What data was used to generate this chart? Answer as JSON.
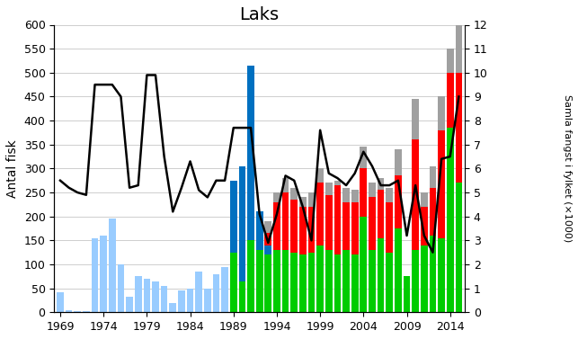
{
  "title": "Laks",
  "ylabel_left": "Antal fisk",
  "ylabel_right": "Samla fangst i fylket (×1000)",
  "ylim_left": [
    0,
    600
  ],
  "ylim_right": [
    0,
    12
  ],
  "yticks_left": [
    0,
    50,
    100,
    150,
    200,
    250,
    300,
    350,
    400,
    450,
    500,
    550,
    600
  ],
  "yticks_right": [
    0,
    1,
    2,
    3,
    4,
    5,
    6,
    7,
    8,
    9,
    10,
    11,
    12
  ],
  "years": [
    1969,
    1970,
    1971,
    1972,
    1973,
    1974,
    1975,
    1976,
    1977,
    1978,
    1979,
    1980,
    1981,
    1982,
    1983,
    1984,
    1985,
    1986,
    1987,
    1988,
    1989,
    1990,
    1991,
    1992,
    1993,
    1994,
    1995,
    1996,
    1997,
    1998,
    1999,
    2000,
    2001,
    2002,
    2003,
    2004,
    2005,
    2006,
    2007,
    2008,
    2009,
    2010,
    2011,
    2012,
    2013,
    2014,
    2015
  ],
  "green": [
    0,
    0,
    0,
    0,
    0,
    0,
    0,
    0,
    0,
    0,
    0,
    0,
    0,
    0,
    0,
    0,
    0,
    0,
    0,
    0,
    125,
    65,
    150,
    130,
    120,
    130,
    130,
    125,
    120,
    125,
    140,
    130,
    120,
    130,
    120,
    200,
    130,
    155,
    125,
    175,
    75,
    130,
    140,
    160,
    155,
    385,
    270
  ],
  "blue": [
    0,
    0,
    0,
    0,
    0,
    0,
    0,
    0,
    0,
    0,
    0,
    0,
    0,
    0,
    0,
    0,
    0,
    0,
    0,
    0,
    150,
    240,
    365,
    80,
    20,
    0,
    0,
    0,
    0,
    0,
    0,
    0,
    0,
    0,
    0,
    0,
    0,
    0,
    0,
    0,
    0,
    0,
    0,
    0,
    0,
    0,
    0
  ],
  "red": [
    0,
    0,
    0,
    0,
    0,
    0,
    0,
    0,
    0,
    0,
    0,
    0,
    0,
    0,
    0,
    0,
    0,
    0,
    0,
    0,
    0,
    0,
    0,
    0,
    25,
    100,
    120,
    110,
    100,
    95,
    130,
    115,
    145,
    100,
    110,
    100,
    110,
    100,
    105,
    110,
    0,
    230,
    80,
    100,
    225,
    115,
    230
  ],
  "gray": [
    0,
    0,
    0,
    0,
    0,
    0,
    0,
    0,
    0,
    0,
    0,
    0,
    0,
    0,
    0,
    0,
    0,
    0,
    0,
    0,
    0,
    0,
    0,
    0,
    25,
    20,
    30,
    25,
    20,
    30,
    30,
    25,
    10,
    30,
    25,
    45,
    30,
    25,
    30,
    55,
    0,
    85,
    30,
    45,
    70,
    50,
    100
  ],
  "lightblue": [
    42,
    5,
    2,
    3,
    155,
    160,
    195,
    100,
    32,
    75,
    70,
    65,
    55,
    20,
    45,
    50,
    85,
    50,
    80,
    95,
    0,
    0,
    0,
    0,
    0,
    0,
    0,
    0,
    0,
    0,
    0,
    0,
    0,
    0,
    0,
    0,
    0,
    0,
    0,
    0,
    0,
    0,
    0,
    0,
    0,
    0,
    0
  ],
  "line": [
    5.5,
    5.2,
    5.0,
    4.9,
    9.5,
    9.5,
    9.5,
    9.0,
    5.2,
    5.3,
    9.9,
    9.9,
    6.5,
    4.2,
    5.2,
    6.3,
    5.1,
    4.8,
    5.5,
    5.5,
    7.7,
    7.7,
    7.7,
    4.1,
    2.9,
    4.1,
    5.7,
    5.5,
    4.4,
    3.0,
    7.6,
    5.8,
    5.6,
    5.3,
    5.8,
    6.7,
    6.1,
    5.3,
    5.3,
    5.5,
    3.2,
    5.3,
    3.2,
    2.5,
    6.4,
    6.5,
    9.0
  ],
  "color_green": "#00CC00",
  "color_blue": "#0070C0",
  "color_red": "#FF0000",
  "color_gray": "#A0A0A0",
  "color_lightblue": "#99CCFF",
  "color_line": "#000000",
  "background": "#FFFFFF",
  "xticks": [
    1969,
    1974,
    1979,
    1984,
    1989,
    1994,
    1999,
    2004,
    2009,
    2014
  ]
}
